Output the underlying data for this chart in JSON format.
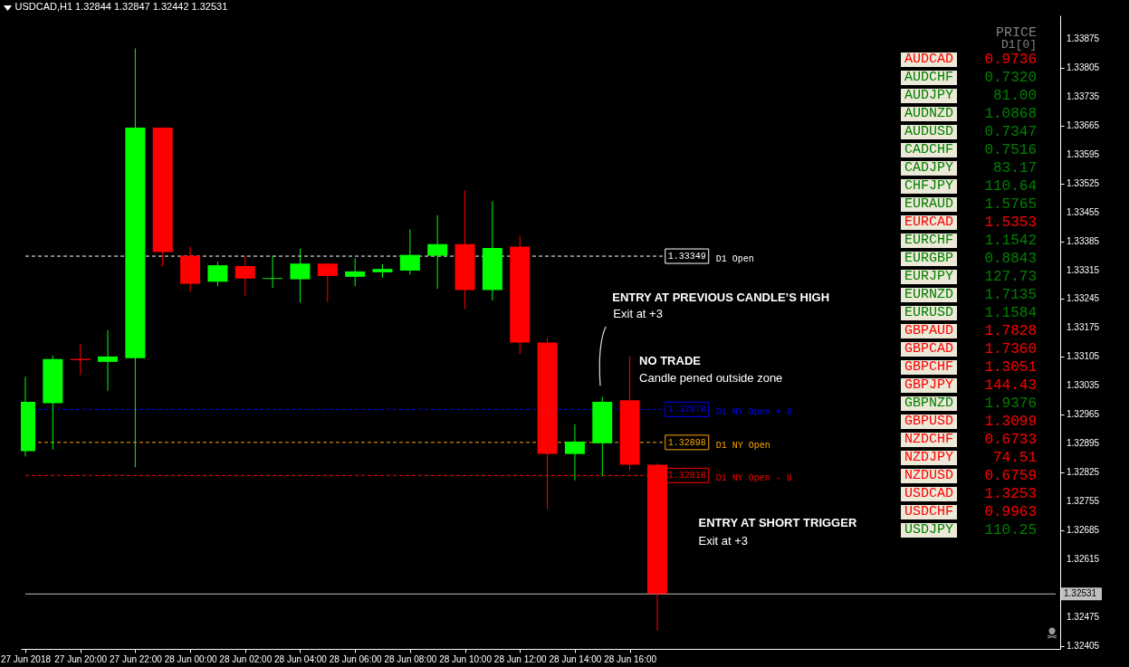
{
  "chart_data": [
    {
      "type": "candlestick",
      "title": "USDCAD,H1  1.32844 1.32847 1.32442 1.32531",
      "x": [
        "2018-06-27T18:00",
        "2018-06-27T19:00",
        "2018-06-27T20:00",
        "2018-06-27T21:00",
        "2018-06-27T22:00",
        "2018-06-27T23:00",
        "2018-06-28T00:00",
        "2018-06-28T01:00",
        "2018-06-28T02:00",
        "2018-06-28T03:00",
        "2018-06-28T04:00",
        "2018-06-28T05:00",
        "2018-06-28T06:00",
        "2018-06-28T07:00",
        "2018-06-28T08:00",
        "2018-06-28T09:00",
        "2018-06-28T10:00",
        "2018-06-28T11:00",
        "2018-06-28T12:00",
        "2018-06-28T13:00",
        "2018-06-28T14:00",
        "2018-06-28T15:00",
        "2018-06-28T16:00",
        "2018-06-28T17:00"
      ],
      "ohlc": [
        [
          1.32877,
          1.33057,
          1.32864,
          1.32996
        ],
        [
          1.32993,
          1.33108,
          1.32881,
          1.331
        ],
        [
          1.331,
          1.33136,
          1.33061,
          1.33097
        ],
        [
          1.33093,
          1.3317,
          1.33023,
          1.33106
        ],
        [
          1.33102,
          1.33852,
          1.32838,
          1.3366
        ],
        [
          1.3366,
          1.3366,
          1.33323,
          1.33359
        ],
        [
          1.3335,
          1.33372,
          1.33263,
          1.33282
        ],
        [
          1.33287,
          1.33335,
          1.33276,
          1.33327
        ],
        [
          1.33325,
          1.3335,
          1.33253,
          1.33295
        ],
        [
          1.33294,
          1.3335,
          1.33272,
          1.33296
        ],
        [
          1.33293,
          1.33367,
          1.33236,
          1.33331
        ],
        [
          1.33331,
          1.33331,
          1.33238,
          1.33301
        ],
        [
          1.33299,
          1.33344,
          1.33276,
          1.33312
        ],
        [
          1.3331,
          1.33329,
          1.33297,
          1.33318
        ],
        [
          1.33314,
          1.33414,
          1.33304,
          1.33352
        ],
        [
          1.3335,
          1.33448,
          1.3327,
          1.33378
        ],
        [
          1.33378,
          1.33508,
          1.33221,
          1.33267
        ],
        [
          1.33267,
          1.33482,
          1.33242,
          1.33369
        ],
        [
          1.33372,
          1.33399,
          1.33112,
          1.3314
        ],
        [
          1.3314,
          1.33151,
          1.32736,
          1.3287
        ],
        [
          1.3287,
          1.32942,
          1.32806,
          1.329
        ],
        [
          1.32896,
          1.33008,
          1.32817,
          1.32996
        ],
        [
          1.33,
          1.33106,
          1.3283,
          1.32844
        ],
        [
          1.32844,
          1.32847,
          1.32442,
          1.32531
        ]
      ],
      "colors": [
        "#00ff00",
        "#00ff00",
        "#ff0000",
        "#00ff00",
        "#00ff00",
        "#ff0000",
        "#ff0000",
        "#00ff00",
        "#ff0000",
        "#00ff00",
        "#00ff00",
        "#ff0000",
        "#00ff00",
        "#00ff00",
        "#00ff00",
        "#00ff00",
        "#ff0000",
        "#00ff00",
        "#ff0000",
        "#ff0000",
        "#00ff00",
        "#00ff00",
        "#ff0000",
        "#ff0000"
      ],
      "xlim": [
        "2018-06-27T18:00",
        "2018-06-29T07:30"
      ],
      "xticks": [
        {
          "value": "2018-06-27T18:00",
          "label": "27 Jun 2018"
        },
        {
          "value": "2018-06-27T20:00",
          "label": "27 Jun 20:00"
        },
        {
          "value": "2018-06-27T22:00",
          "label": "27 Jun 22:00"
        },
        {
          "value": "2018-06-28T00:00",
          "label": "28 Jun 00:00"
        },
        {
          "value": "2018-06-28T02:00",
          "label": "28 Jun 02:00"
        },
        {
          "value": "2018-06-28T04:00",
          "label": "28 Jun 04:00"
        },
        {
          "value": "2018-06-28T06:00",
          "label": "28 Jun 06:00"
        },
        {
          "value": "2018-06-28T08:00",
          "label": "28 Jun 08:00"
        },
        {
          "value": "2018-06-28T10:00",
          "label": "28 Jun 10:00"
        },
        {
          "value": "2018-06-28T12:00",
          "label": "28 Jun 12:00"
        },
        {
          "value": "2018-06-28T14:00",
          "label": "28 Jun 14:00"
        },
        {
          "value": "2018-06-28T16:00",
          "label": "28 Jun 16:00"
        }
      ],
      "ylim": [
        1.32398,
        1.33932
      ],
      "yticks": [
        1.33875,
        1.33805,
        1.33735,
        1.33665,
        1.33595,
        1.33525,
        1.33455,
        1.33385,
        1.33315,
        1.33245,
        1.33175,
        1.33105,
        1.33035,
        1.32965,
        1.32895,
        1.32825,
        1.32755,
        1.32685,
        1.32615,
        {
          "value": 1.32545,
          "label": null
        },
        1.32475,
        1.32405
      ],
      "ref_lines": [
        {
          "axis": "y",
          "value": 1.33349,
          "label": "1.33349 D1 Open",
          "color": "#ffffff",
          "line_style": "dashed"
        },
        {
          "axis": "y",
          "value": 1.32978,
          "label": "1.32978 D1 NY Open + 8",
          "color": "#0000ff",
          "line_style": "dashed"
        },
        {
          "axis": "y",
          "value": 1.32898,
          "label": "1.32898 D1 NY Open",
          "color": "#ffa500",
          "line_style": "dashed"
        },
        {
          "axis": "y",
          "value": 1.32818,
          "label": "1.32818 D1 NY Open - 8",
          "color": "#ff0000",
          "line_style": "dashed"
        },
        {
          "axis": "y",
          "value": 1.32531,
          "label": "1.32531",
          "color": "#c0c0c0",
          "line_style": "solid"
        }
      ],
      "annotations": [
        "ENTRY AT PREVIOUS CANDLE’S HIGH",
        "Exit at +3",
        "NO TRADE",
        "Candle pened outside zone",
        "ENTRY AT SHORT TRIGGER",
        "Exit at +3"
      ],
      "grid": false
    },
    {
      "type": "other",
      "title": "PRICE",
      "subtitle": "D1[0]",
      "categories": [
        "AUDCAD",
        "AUDCHF",
        "AUDJPY",
        "AUDNZD",
        "AUDUSD",
        "CADCHF",
        "CADJPY",
        "CHFJPY",
        "EURAUD",
        "EURCAD",
        "EURCHF",
        "EURGBP",
        "EURJPY",
        "EURNZD",
        "EURUSD",
        "GBPAUD",
        "GBPCAD",
        "GBPCHF",
        "GBPJPY",
        "GBPNZD",
        "GBPUSD",
        "NZDCHF",
        "NZDJPY",
        "NZDUSD",
        "USDCAD",
        "USDCHF",
        "USDJPY"
      ],
      "value_labels": [
        "0.9736",
        "0.7320",
        "81.00",
        "1.0868",
        "0.7347",
        "0.7516",
        "83.17",
        "110.64",
        "1.5765",
        "1.5353",
        "1.1542",
        "0.8843",
        "127.73",
        "1.7135",
        "1.1584",
        "1.7828",
        "1.7360",
        "1.3051",
        "144.43",
        "1.9376",
        "1.3099",
        "0.6733",
        "74.51",
        "0.6759",
        "1.3253",
        "0.9963",
        "110.25"
      ],
      "colors": [
        "#ff0000",
        "#008000",
        "#008000",
        "#008000",
        "#008000",
        "#008000",
        "#008000",
        "#008000",
        "#008000",
        "#ff0000",
        "#008000",
        "#008000",
        "#008000",
        "#008000",
        "#008000",
        "#ff0000",
        "#ff0000",
        "#ff0000",
        "#ff0000",
        "#008000",
        "#ff0000",
        "#ff0000",
        "#ff0000",
        "#ff0000",
        "#ff0000",
        "#ff0000",
        "#008000"
      ]
    }
  ]
}
